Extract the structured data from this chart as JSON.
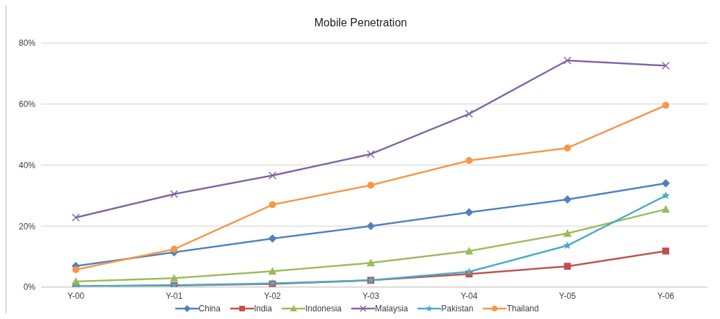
{
  "chart_data": {
    "type": "line",
    "title": "Mobile Penetration",
    "categories": [
      "Y-00",
      "Y-01",
      "Y-02",
      "Y-03",
      "Y-04",
      "Y-05",
      "Y-06"
    ],
    "series": [
      {
        "name": "China",
        "color": "#4f81bd",
        "marker": "diamond",
        "values": [
          6.9,
          11.4,
          15.9,
          20,
          24.5,
          28.7,
          34
        ]
      },
      {
        "name": "India",
        "color": "#c0504d",
        "marker": "square",
        "values": [
          0.3,
          0.5,
          1,
          2.2,
          4.3,
          6.8,
          11.8
        ]
      },
      {
        "name": "Indonesia",
        "color": "#9bbb59",
        "marker": "triangle",
        "values": [
          1.8,
          2.9,
          5.2,
          7.9,
          11.8,
          17.6,
          25.5
        ]
      },
      {
        "name": "Malaysia",
        "color": "#8064a2",
        "marker": "cross",
        "values": [
          22.8,
          30.5,
          36.6,
          43.6,
          56.8,
          74.3,
          72.6
        ]
      },
      {
        "name": "Pakistan",
        "color": "#4bacc6",
        "marker": "star",
        "values": [
          0.3,
          0.6,
          1.2,
          2.2,
          5,
          13.6,
          30
        ]
      },
      {
        "name": "Thailand",
        "color": "#f79646",
        "marker": "circle",
        "values": [
          5.7,
          12.4,
          27,
          33.4,
          41.5,
          45.6,
          59.6
        ]
      }
    ],
    "ylim": [
      0,
      80
    ],
    "yticks": [
      {
        "value": 0,
        "label": "0%"
      },
      {
        "value": 20,
        "label": "20%"
      },
      {
        "value": 40,
        "label": "40%"
      },
      {
        "value": 60,
        "label": "60%"
      },
      {
        "value": 80,
        "label": "80%"
      }
    ],
    "grid": "y",
    "legend": "bottom",
    "line_style": "solid"
  }
}
